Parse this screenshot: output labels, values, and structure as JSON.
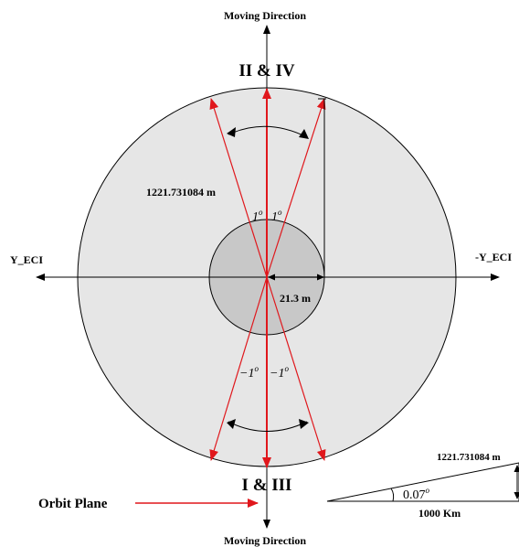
{
  "labels": {
    "moving_direction_top": "Moving Direction",
    "moving_direction_bottom": "Moving Direction",
    "top_group": "II & IV",
    "bottom_group": "I & III",
    "y_eci_left": "Y_ECI",
    "y_eci_right": "-Y_ECI",
    "distance_label": "1221.731084 m",
    "radius_label": "21.3 m",
    "angle_pos_left": "1",
    "angle_pos_right": "1",
    "angle_neg_left": "−1",
    "angle_neg_right": "−1",
    "degree_symbol": "o",
    "orbit_plane": "Orbit Plane",
    "inset_distance": "1221.731084 m",
    "inset_angle": "0.07",
    "inset_base": "1000 Km"
  },
  "colors": {
    "outer_fill": "#e6e6e6",
    "inner_fill": "#c8c8c8",
    "red": "#e0171c",
    "black": "#000000"
  }
}
